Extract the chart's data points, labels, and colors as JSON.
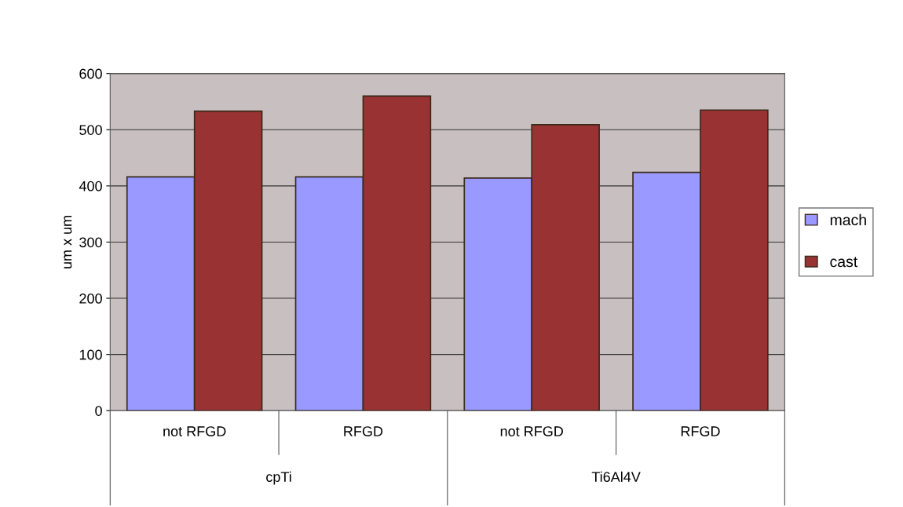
{
  "chart_data": {
    "type": "bar",
    "ylabel": "um x um",
    "categories": [
      "not RFGD",
      "RFGD",
      "not RFGD",
      "RFGD"
    ],
    "series": [
      {
        "name": "mach",
        "color": "#9999ff",
        "values": [
          416,
          416,
          414,
          424
        ]
      },
      {
        "name": "cast",
        "color": "#993333",
        "values": [
          533,
          560,
          509,
          535
        ]
      }
    ],
    "annotations": [
      "cpTi",
      "Ti6Al4V"
    ],
    "ylim": [
      0,
      600
    ],
    "yticks": [
      0,
      100,
      200,
      300,
      400,
      500,
      600
    ],
    "grid": "y",
    "legend": "right"
  }
}
